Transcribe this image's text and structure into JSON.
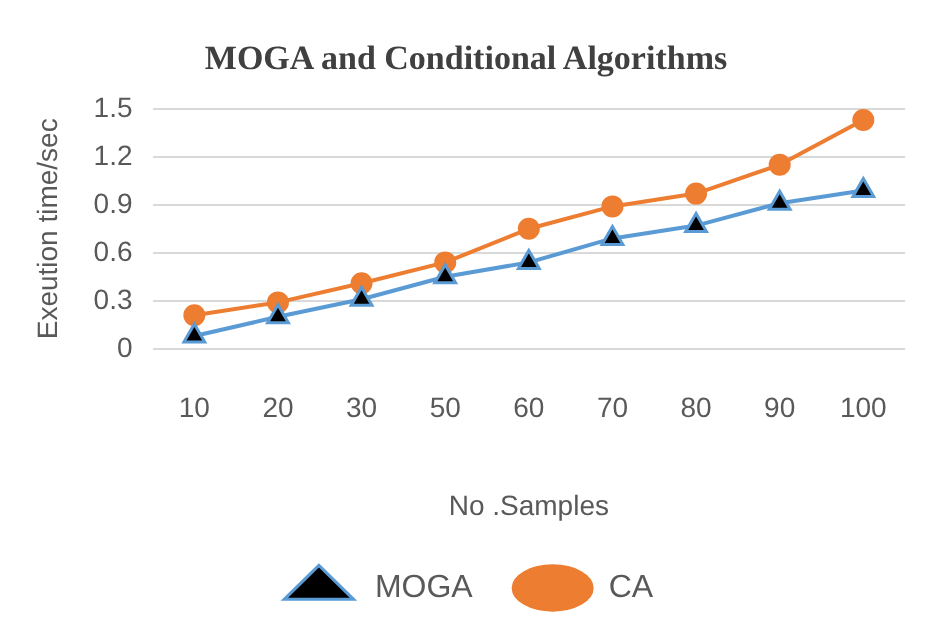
{
  "chart_data": {
    "type": "line",
    "title": "MOGA and Conditional Algorithms",
    "xlabel": "No .Samples",
    "ylabel": "Exeution time/sec",
    "categories": [
      "10",
      "20",
      "30",
      "50",
      "60",
      "70",
      "80",
      "90",
      "100"
    ],
    "series": [
      {
        "name": "MOGA",
        "color": "#5b9bd5",
        "marker": "triangle",
        "values": [
          0.08,
          0.2,
          0.31,
          0.45,
          0.54,
          0.69,
          0.77,
          0.91,
          0.99
        ]
      },
      {
        "name": "CA",
        "color": "#ed7d31",
        "marker": "circle",
        "values": [
          0.21,
          0.29,
          0.41,
          0.54,
          0.75,
          0.89,
          0.97,
          1.15,
          1.43
        ]
      }
    ],
    "ylim": [
      0,
      1.5
    ],
    "yticks": [
      0,
      0.3,
      0.6,
      0.9,
      1.2,
      1.5
    ],
    "grid": "y",
    "legend": "bottom"
  }
}
